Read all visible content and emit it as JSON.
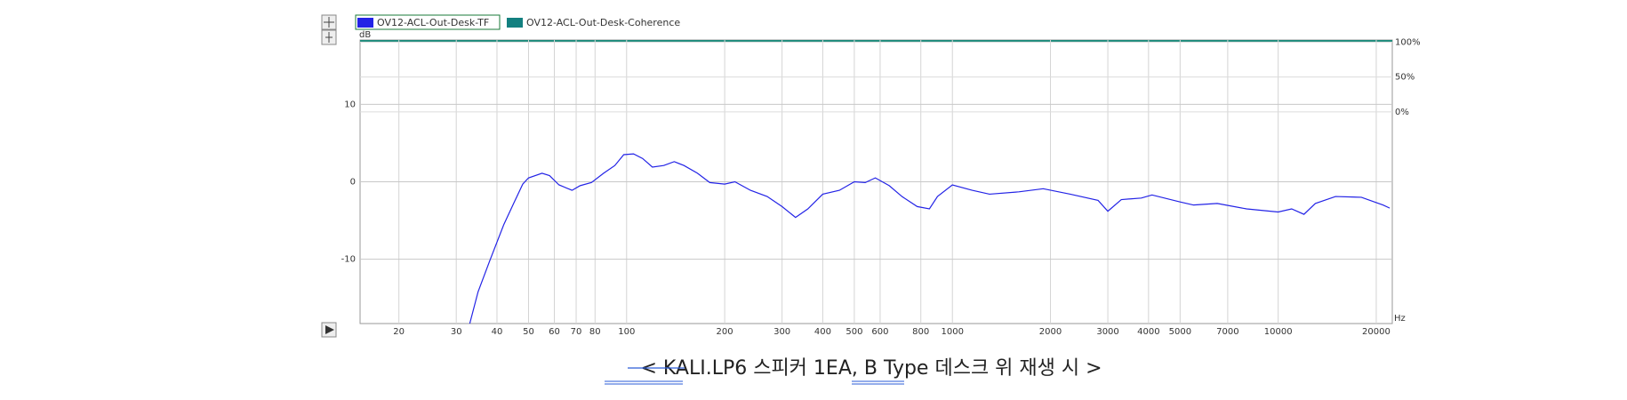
{
  "chart_data": {
    "type": "line",
    "y_unit": "dB",
    "x_unit": "Hz",
    "log_x": true,
    "grid": true,
    "xlim": [
      15.2,
      22400
    ],
    "xticks": [
      20,
      30,
      40,
      50,
      60,
      70,
      80,
      100,
      200,
      300,
      400,
      500,
      600,
      800,
      1000,
      2000,
      3000,
      4000,
      5000,
      7000,
      10000,
      20000
    ],
    "ylim": [
      -18.3,
      18.3
    ],
    "yticks": [
      -10,
      0,
      10
    ],
    "y2lim": [
      -303,
      103
    ],
    "y2ticks": [
      {
        "value": 0,
        "label": "0%"
      },
      {
        "value": 50,
        "label": "50%"
      },
      {
        "value": 100,
        "label": "100%"
      }
    ],
    "x": [
      33,
      35,
      38,
      42,
      45,
      48,
      50,
      55,
      58,
      62,
      68,
      72,
      78,
      85,
      92,
      98,
      105,
      112,
      120,
      130,
      140,
      150,
      165,
      180,
      200,
      215,
      240,
      270,
      300,
      330,
      360,
      400,
      450,
      500,
      540,
      580,
      640,
      700,
      780,
      850,
      900,
      1000,
      1150,
      1300,
      1600,
      1900,
      2300,
      2800,
      3000,
      3300,
      3800,
      4100,
      5000,
      5500,
      6500,
      8000,
      10000,
      11000,
      12000,
      13000,
      15000,
      18000,
      21000,
      22000
    ],
    "series": [
      {
        "name": "OV12-ACL-Out-Desk-TF",
        "color": "#2323e6",
        "values": [
          -18.3,
          -14.2,
          -10.2,
          -5.5,
          -2.8,
          -0.3,
          0.5,
          1.1,
          0.8,
          -0.4,
          -1.1,
          -0.5,
          -0.1,
          1.1,
          2.1,
          3.5,
          3.6,
          3.0,
          1.9,
          2.1,
          2.6,
          2.1,
          1.1,
          -0.1,
          -0.3,
          0,
          -1.1,
          -1.9,
          -3.2,
          -4.6,
          -3.5,
          -1.6,
          -1.1,
          0,
          -0.1,
          0.5,
          -0.5,
          -1.9,
          -3.2,
          -3.5,
          -1.9,
          -0.4,
          -1.1,
          -1.6,
          -1.3,
          -0.9,
          -1.6,
          -2.4,
          -3.8,
          -2.3,
          -2.1,
          -1.7,
          -2.6,
          -3.0,
          -2.8,
          -3.5,
          -3.9,
          -3.5,
          -4.2,
          -2.8,
          -1.9,
          -2.0,
          -3.0,
          -3.4
        ]
      },
      {
        "name": "OV12-ACL-Out-Desk-Coherence",
        "color": "#138080",
        "axis": "y2",
        "values": [
          null,
          null,
          null,
          null,
          null,
          null,
          null,
          null,
          null,
          null,
          null,
          null,
          null,
          null,
          null,
          null,
          null,
          null,
          null,
          null,
          null,
          null,
          null,
          null,
          null,
          null,
          null,
          null,
          null,
          null,
          null,
          null,
          null,
          null,
          null,
          null,
          null,
          null,
          null,
          null,
          null,
          null,
          null,
          null,
          null,
          null,
          null,
          null,
          null,
          null,
          null,
          null,
          null,
          null,
          null,
          null,
          null,
          null,
          null,
          null,
          null,
          null,
          null,
          null
        ]
      }
    ],
    "caption": "< KALI.LP6 스피커 1EA, B Type 데스크 위 재생 시 >"
  }
}
